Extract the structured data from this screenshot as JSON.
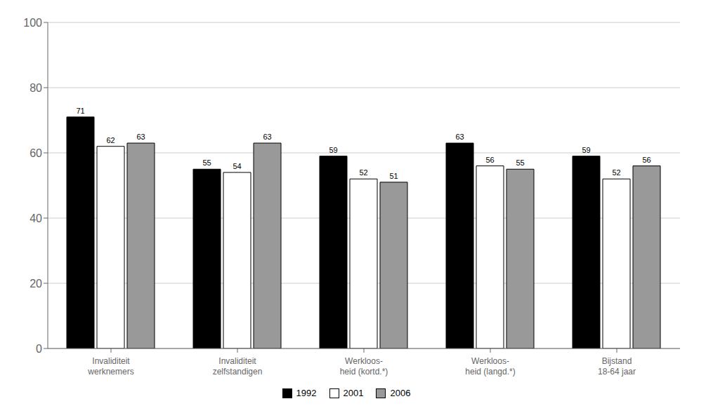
{
  "chart_data": {
    "type": "bar",
    "categories": [
      "Invaliditeit\nwerknemers",
      "Invaliditeit\nzelfstandigen",
      "Werkloos-\nheid (kortd.*)",
      "Werkloos-\nheid (langd.*)",
      "Bijstand\n18-64 jaar"
    ],
    "series": [
      {
        "name": "1992",
        "color": "#000000",
        "values": [
          71,
          55,
          59,
          63,
          59
        ]
      },
      {
        "name": "2001",
        "color": "#ffffff",
        "values": [
          62,
          54,
          52,
          56,
          52
        ]
      },
      {
        "name": "2006",
        "color": "#999999",
        "values": [
          63,
          63,
          51,
          55,
          56
        ]
      }
    ],
    "ylim": [
      0,
      100
    ],
    "yticks": [
      0,
      20,
      40,
      60,
      80,
      100
    ],
    "grid": true,
    "legend": "bottom",
    "data_labels": true
  }
}
